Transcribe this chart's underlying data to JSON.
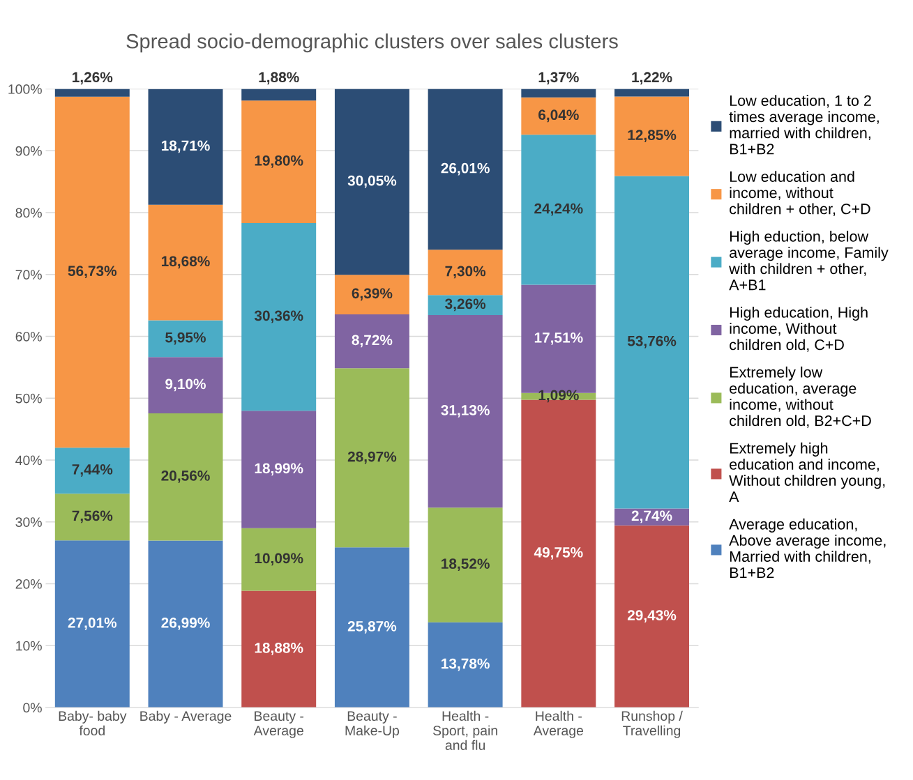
{
  "chart_data": {
    "type": "bar",
    "stacked": true,
    "title": "Spread socio-demographic clusters over sales clusters",
    "categories": [
      "Baby- baby food",
      "Baby - Average",
      "Beauty - Average",
      "Beauty - Make-Up",
      "Health - Sport, pain and flu",
      "Health - Average",
      "Runshop / Travelling"
    ],
    "series": [
      {
        "name": "Average education, Above average income, Married with children, B1+B2",
        "color": "#4f81bd",
        "values": [
          27.01,
          26.99,
          null,
          25.87,
          13.78,
          null,
          null
        ],
        "value_labels": [
          "27,01%",
          "26,99%",
          null,
          "25,87%",
          "13,78%",
          null,
          null
        ]
      },
      {
        "name": "Extremely high education and income, Without children young, A",
        "color": "#c0504d",
        "values": [
          null,
          null,
          18.88,
          null,
          null,
          49.75,
          29.43
        ],
        "value_labels": [
          null,
          null,
          "18,88%",
          null,
          null,
          "49,75%",
          "29,43%"
        ]
      },
      {
        "name": "Extremely low education, average income, without children old, B2+C+D",
        "color": "#9bbb59",
        "values": [
          7.56,
          20.56,
          10.09,
          28.97,
          18.52,
          1.09,
          null
        ],
        "value_labels": [
          "7,56%",
          "20,56%",
          "10,09%",
          "28,97%",
          "18,52%",
          "1,09%",
          null
        ]
      },
      {
        "name": "High education, High income, Without children old, C+D",
        "color": "#8064a2",
        "values": [
          null,
          9.1,
          18.99,
          8.72,
          31.13,
          17.51,
          2.74
        ],
        "value_labels": [
          null,
          "9,10%",
          "18,99%",
          "8,72%",
          "31,13%",
          "17,51%",
          "2,74%"
        ]
      },
      {
        "name": "High eduction, below average income, Family with children + other, A+B1",
        "color": "#4bacc6",
        "values": [
          7.44,
          5.95,
          30.36,
          null,
          3.26,
          24.24,
          53.76
        ],
        "value_labels": [
          "7,44%",
          "5,95%",
          "30,36%",
          null,
          "3,26%",
          "24,24%",
          "53,76%"
        ]
      },
      {
        "name": "Low education and income, without children + other, C+D",
        "color": "#f79646",
        "values": [
          56.73,
          18.68,
          19.8,
          6.39,
          7.3,
          6.04,
          12.85
        ],
        "value_labels": [
          "56,73%",
          "18,68%",
          "19,80%",
          "6,39%",
          "7,30%",
          "6,04%",
          "12,85%"
        ]
      },
      {
        "name": "Low education, 1 to 2 times average income, married with children, B1+B2",
        "color": "#2c4d75",
        "values": [
          1.26,
          18.71,
          1.88,
          30.05,
          26.01,
          1.37,
          1.22
        ],
        "value_labels": [
          "1,26%",
          "18,71%",
          "1,88%",
          "30,05%",
          "26,01%",
          "1,37%",
          "1,22%"
        ]
      }
    ],
    "ylim": [
      0,
      100
    ],
    "yticks": [
      {
        "value": 0,
        "label": "0%"
      },
      {
        "value": 10,
        "label": "10%"
      },
      {
        "value": 20,
        "label": "20%"
      },
      {
        "value": 30,
        "label": "30%"
      },
      {
        "value": 40,
        "label": "40%"
      },
      {
        "value": 50,
        "label": "50%"
      },
      {
        "value": 60,
        "label": "60%"
      },
      {
        "value": 70,
        "label": "70%"
      },
      {
        "value": 80,
        "label": "80%"
      },
      {
        "value": 90,
        "label": "90%"
      },
      {
        "value": 100,
        "label": "100%"
      }
    ],
    "grid": "y",
    "legend": "right"
  }
}
